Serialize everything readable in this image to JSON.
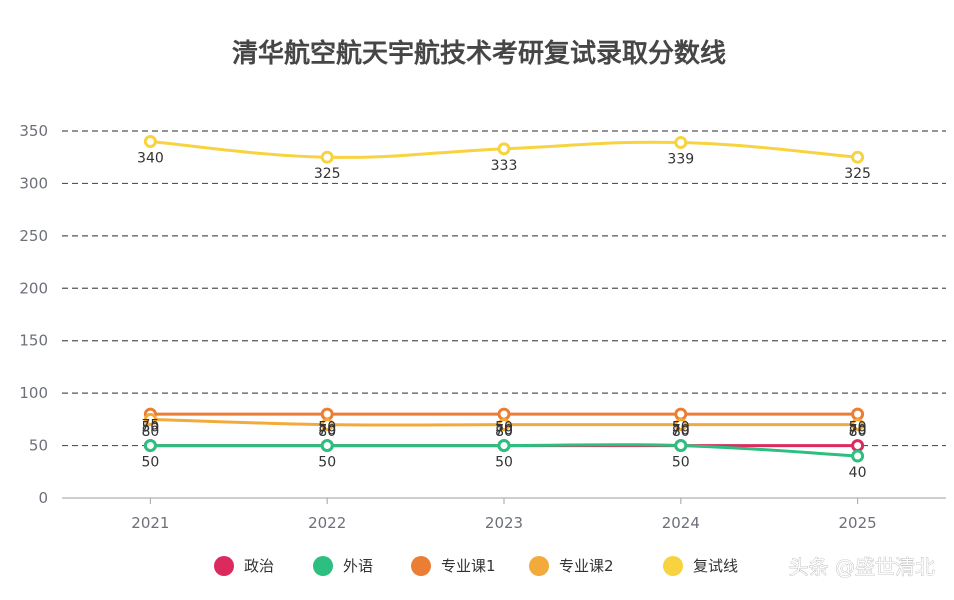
{
  "chart_data": {
    "type": "line",
    "title": "清华航空航天宇航技术考研复试录取分数线",
    "categories": [
      "2021",
      "2022",
      "2023",
      "2024",
      "2025"
    ],
    "ylim": [
      0,
      350
    ],
    "yticks": [
      0,
      50,
      100,
      150,
      200,
      250,
      300,
      350
    ],
    "grid": "horizontal dashed",
    "legend_position": "bottom",
    "series": [
      {
        "name": "政治",
        "color": "#dc2a5e",
        "values": [
          50,
          50,
          50,
          50,
          50
        ]
      },
      {
        "name": "外语",
        "color": "#2dbf80",
        "values": [
          50,
          50,
          50,
          50,
          40
        ]
      },
      {
        "name": "专业课1",
        "color": "#ea7e35",
        "values": [
          80,
          80,
          80,
          80,
          80
        ]
      },
      {
        "name": "专业课2",
        "color": "#f2ab3b",
        "values": [
          75,
          70,
          70,
          70,
          70
        ]
      },
      {
        "name": "复试线",
        "color": "#f7d33f",
        "values": [
          340,
          325,
          333,
          339,
          325
        ]
      }
    ]
  },
  "watermark": "头条 @盛世清北"
}
